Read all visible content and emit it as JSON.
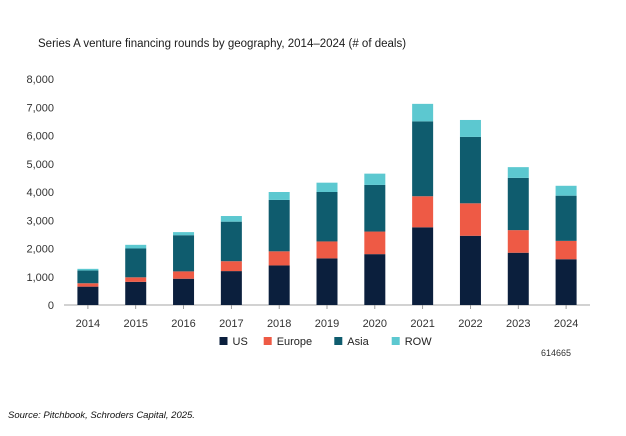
{
  "title": "Series A venture financing rounds by geography, 2014–2024 (# of deals)",
  "code": "614665",
  "source": "Source: Pitchbook, Schroders Capital, 2025.",
  "colors": {
    "US": "#0b1f3d",
    "Europe": "#ee5a45",
    "Asia": "#0f5c6e",
    "ROW": "#5cc8d0"
  },
  "chart_data": {
    "type": "bar",
    "stacked": true,
    "title": "Series A venture financing rounds by geography, 2014–2024 (# of deals)",
    "xlabel": "",
    "ylabel": "",
    "ylim": [
      0,
      8000
    ],
    "yticks": [
      0,
      1000,
      2000,
      3000,
      4000,
      5000,
      6000,
      7000,
      8000
    ],
    "ytick_labels": [
      "0",
      "1,000",
      "2,000",
      "3,000",
      "4,000",
      "5,000",
      "6,000",
      "7,000",
      "8,000"
    ],
    "grid": false,
    "legend_position": "bottom",
    "categories": [
      "2014",
      "2015",
      "2016",
      "2017",
      "2018",
      "2019",
      "2020",
      "2021",
      "2022",
      "2023",
      "2024"
    ],
    "series": [
      {
        "name": "US",
        "values": [
          650,
          820,
          930,
          1200,
          1400,
          1650,
          1800,
          2750,
          2450,
          1850,
          1620
        ]
      },
      {
        "name": "Europe",
        "values": [
          120,
          160,
          260,
          350,
          500,
          600,
          800,
          1100,
          1150,
          800,
          650
        ]
      },
      {
        "name": "Asia",
        "values": [
          450,
          1020,
          1280,
          1400,
          1820,
          1750,
          1650,
          2650,
          2350,
          1850,
          1600
        ]
      },
      {
        "name": "ROW",
        "values": [
          60,
          130,
          110,
          200,
          280,
          330,
          400,
          620,
          600,
          380,
          350
        ]
      }
    ]
  }
}
